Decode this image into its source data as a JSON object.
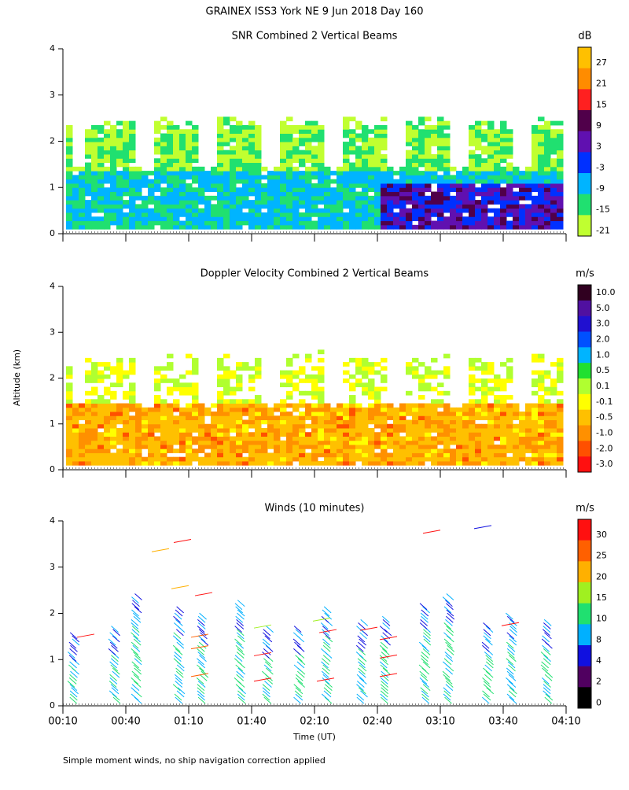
{
  "title": "GRAINEX ISS3 York NE   9 Jun 2018 Day 160",
  "y_label": "Altitude (km)",
  "x_label": "Time (UT)",
  "footnote": "Simple moment winds, no ship navigation correction applied",
  "ylim": [
    0,
    4
  ],
  "yticks": [
    0,
    1,
    2,
    3,
    4
  ],
  "xticks": [
    "00:10",
    "00:40",
    "01:10",
    "01:40",
    "02:10",
    "02:40",
    "03:10",
    "03:40",
    "04:10"
  ],
  "panels": [
    {
      "title": "SNR Combined 2 Vertical Beams",
      "unit": "dB",
      "colorbar": {
        "ticks": [
          27,
          21,
          15,
          9,
          3,
          -3,
          -9,
          -15,
          -21
        ],
        "colors": [
          "#ffc000",
          "#ff8c00",
          "#ff2020",
          "#50004a",
          "#6010b0",
          "#0030ff",
          "#00b4ff",
          "#20e070",
          "#c0ff30"
        ]
      }
    },
    {
      "title": "Doppler Velocity Combined 2 Vertical Beams",
      "unit": "m/s",
      "colorbar": {
        "ticks": [
          {
            "value": 10,
            "label": "10.0"
          },
          {
            "value": 5,
            "label": "5.0"
          },
          {
            "value": 3,
            "label": "3.0"
          },
          {
            "value": 2,
            "label": "2.0"
          },
          {
            "value": 1,
            "label": "1.0"
          },
          0.5,
          0.1,
          -0.1,
          -0.5,
          {
            "value": -1,
            "label": "-1.0"
          },
          {
            "value": -2,
            "label": "-2.0"
          },
          {
            "value": -3,
            "label": "-3.0"
          }
        ],
        "colors": [
          "#300020",
          "#5010a0",
          "#2010d0",
          "#0050ff",
          "#00b4ff",
          "#20e030",
          "#b0ff30",
          "#ffff00",
          "#ffc000",
          "#ff9000",
          "#ff5000",
          "#ff1010"
        ]
      }
    },
    {
      "title": "Winds (10 minutes)",
      "unit": "m/s",
      "colorbar": {
        "ticks": [
          30,
          25,
          20,
          15,
          10,
          8,
          4,
          2,
          0
        ],
        "colors": [
          "#ff1010",
          "#ff6000",
          "#ffb000",
          "#a0f020",
          "#20e070",
          "#00b0ff",
          "#1010e0",
          "#500060",
          "#000000"
        ]
      }
    }
  ]
}
